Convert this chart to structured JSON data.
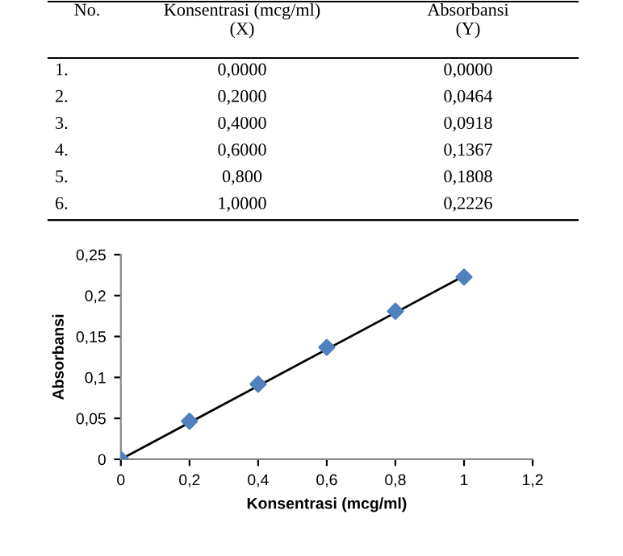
{
  "chart_data": {
    "type": "scatter",
    "xlabel": "Konsentrasi (mcg/ml)",
    "ylabel": "Absorbansi",
    "x": [
      0,
      0.2,
      0.4,
      0.6,
      0.8,
      1
    ],
    "xlim": [
      0,
      1.2
    ],
    "xticks": [
      {
        "value": 0,
        "label": "0"
      },
      {
        "value": 0.2,
        "label": "0,2"
      },
      {
        "value": 0.4,
        "label": "0,4"
      },
      {
        "value": 0.6,
        "label": "0,6"
      },
      {
        "value": 0.8,
        "label": "0,8"
      },
      {
        "value": 1,
        "label": "1"
      },
      {
        "value": 1.2,
        "label": "1,2"
      }
    ],
    "ylim": [
      0,
      0.25
    ],
    "yticks": [
      {
        "value": 0,
        "label": "0"
      },
      {
        "value": 0.05,
        "label": "0,05"
      },
      {
        "value": 0.1,
        "label": "0,1"
      },
      {
        "value": 0.15,
        "label": "0,15"
      },
      {
        "value": 0.2,
        "label": "0,2"
      },
      {
        "value": 0.25,
        "label": "0,25"
      }
    ],
    "grid": false,
    "legend": false,
    "series": [
      {
        "color": "#4f81bd",
        "marker": "diamond",
        "values": [
          0,
          0.0464,
          0.0918,
          0.1367,
          0.1808,
          0.2226
        ]
      },
      {
        "type": "line",
        "color": "#000000",
        "marker": "none",
        "line_style": "solid",
        "x": [
          0,
          1
        ],
        "values": [
          0.0,
          0.224
        ]
      }
    ],
    "annotations": [
      "No.",
      "Konsentrasi (mcg/ml)\n(X)",
      "Absorbansi\n(Y)",
      "1.",
      "0,0000",
      "0,0000",
      "2.",
      "0,2000",
      "0,0464",
      "3.",
      "0,4000",
      "0,0918",
      "4.",
      "0,6000",
      "0,1367",
      "5.",
      "0,800",
      "0,1808",
      "6.",
      "1,0000",
      "0,2226"
    ]
  }
}
